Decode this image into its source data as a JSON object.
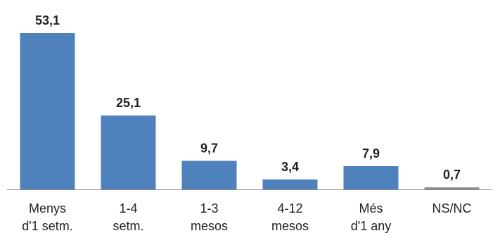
{
  "chart_data": {
    "type": "bar",
    "categories": [
      [
        "Menys",
        "d'1 setm."
      ],
      [
        "1-4",
        "setm."
      ],
      [
        "1-3",
        "mesos"
      ],
      [
        "4-12",
        "mesos"
      ],
      [
        "Més",
        "d'1 any"
      ],
      [
        "NS/NC"
      ]
    ],
    "values": [
      53.1,
      25.1,
      9.7,
      3.4,
      7.9,
      0.7
    ],
    "value_labels": [
      "53,1",
      "25,1",
      "9,7",
      "3,4",
      "7,9",
      "0,7"
    ],
    "ylim": [
      0,
      53.1
    ],
    "grid": false,
    "legend": "none",
    "colors": {
      "bar": "#4f81bd",
      "last_bar": "#8a8a8a",
      "axis": "#8c8c8c",
      "text": "#222222"
    }
  }
}
